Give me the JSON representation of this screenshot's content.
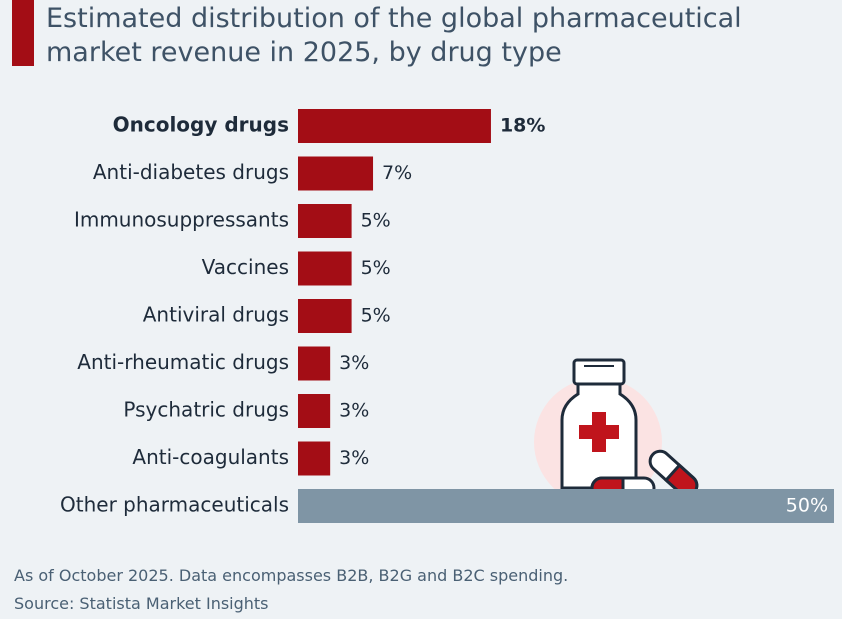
{
  "chart_data": {
    "type": "bar",
    "orientation": "horizontal",
    "title": "Estimated distribution of the global pharmaceutical market revenue in 2025, by drug type",
    "categories": [
      "Oncology drugs",
      "Anti-diabetes drugs",
      "Immunosuppressants",
      "Vaccines",
      "Antiviral drugs",
      "Anti-rheumatic drugs",
      "Psychatric drugs",
      "Anti-coagulants",
      "Other pharmaceuticals"
    ],
    "values": [
      18,
      7,
      5,
      5,
      5,
      3,
      3,
      3,
      50
    ],
    "value_labels": [
      "18%",
      "7%",
      "5%",
      "5%",
      "5%",
      "3%",
      "3%",
      "3%",
      "50%"
    ],
    "colors": [
      "#a30d15",
      "#a30d15",
      "#a30d15",
      "#a30d15",
      "#a30d15",
      "#a30d15",
      "#a30d15",
      "#a30d15",
      "#7f95a5"
    ],
    "highlight_index": 0,
    "xlim": [
      0,
      50
    ],
    "note": "As of October 2025. Data encompasses B2B, B2G and B2C spending.",
    "source": "Source: Statista Market Insights"
  }
}
